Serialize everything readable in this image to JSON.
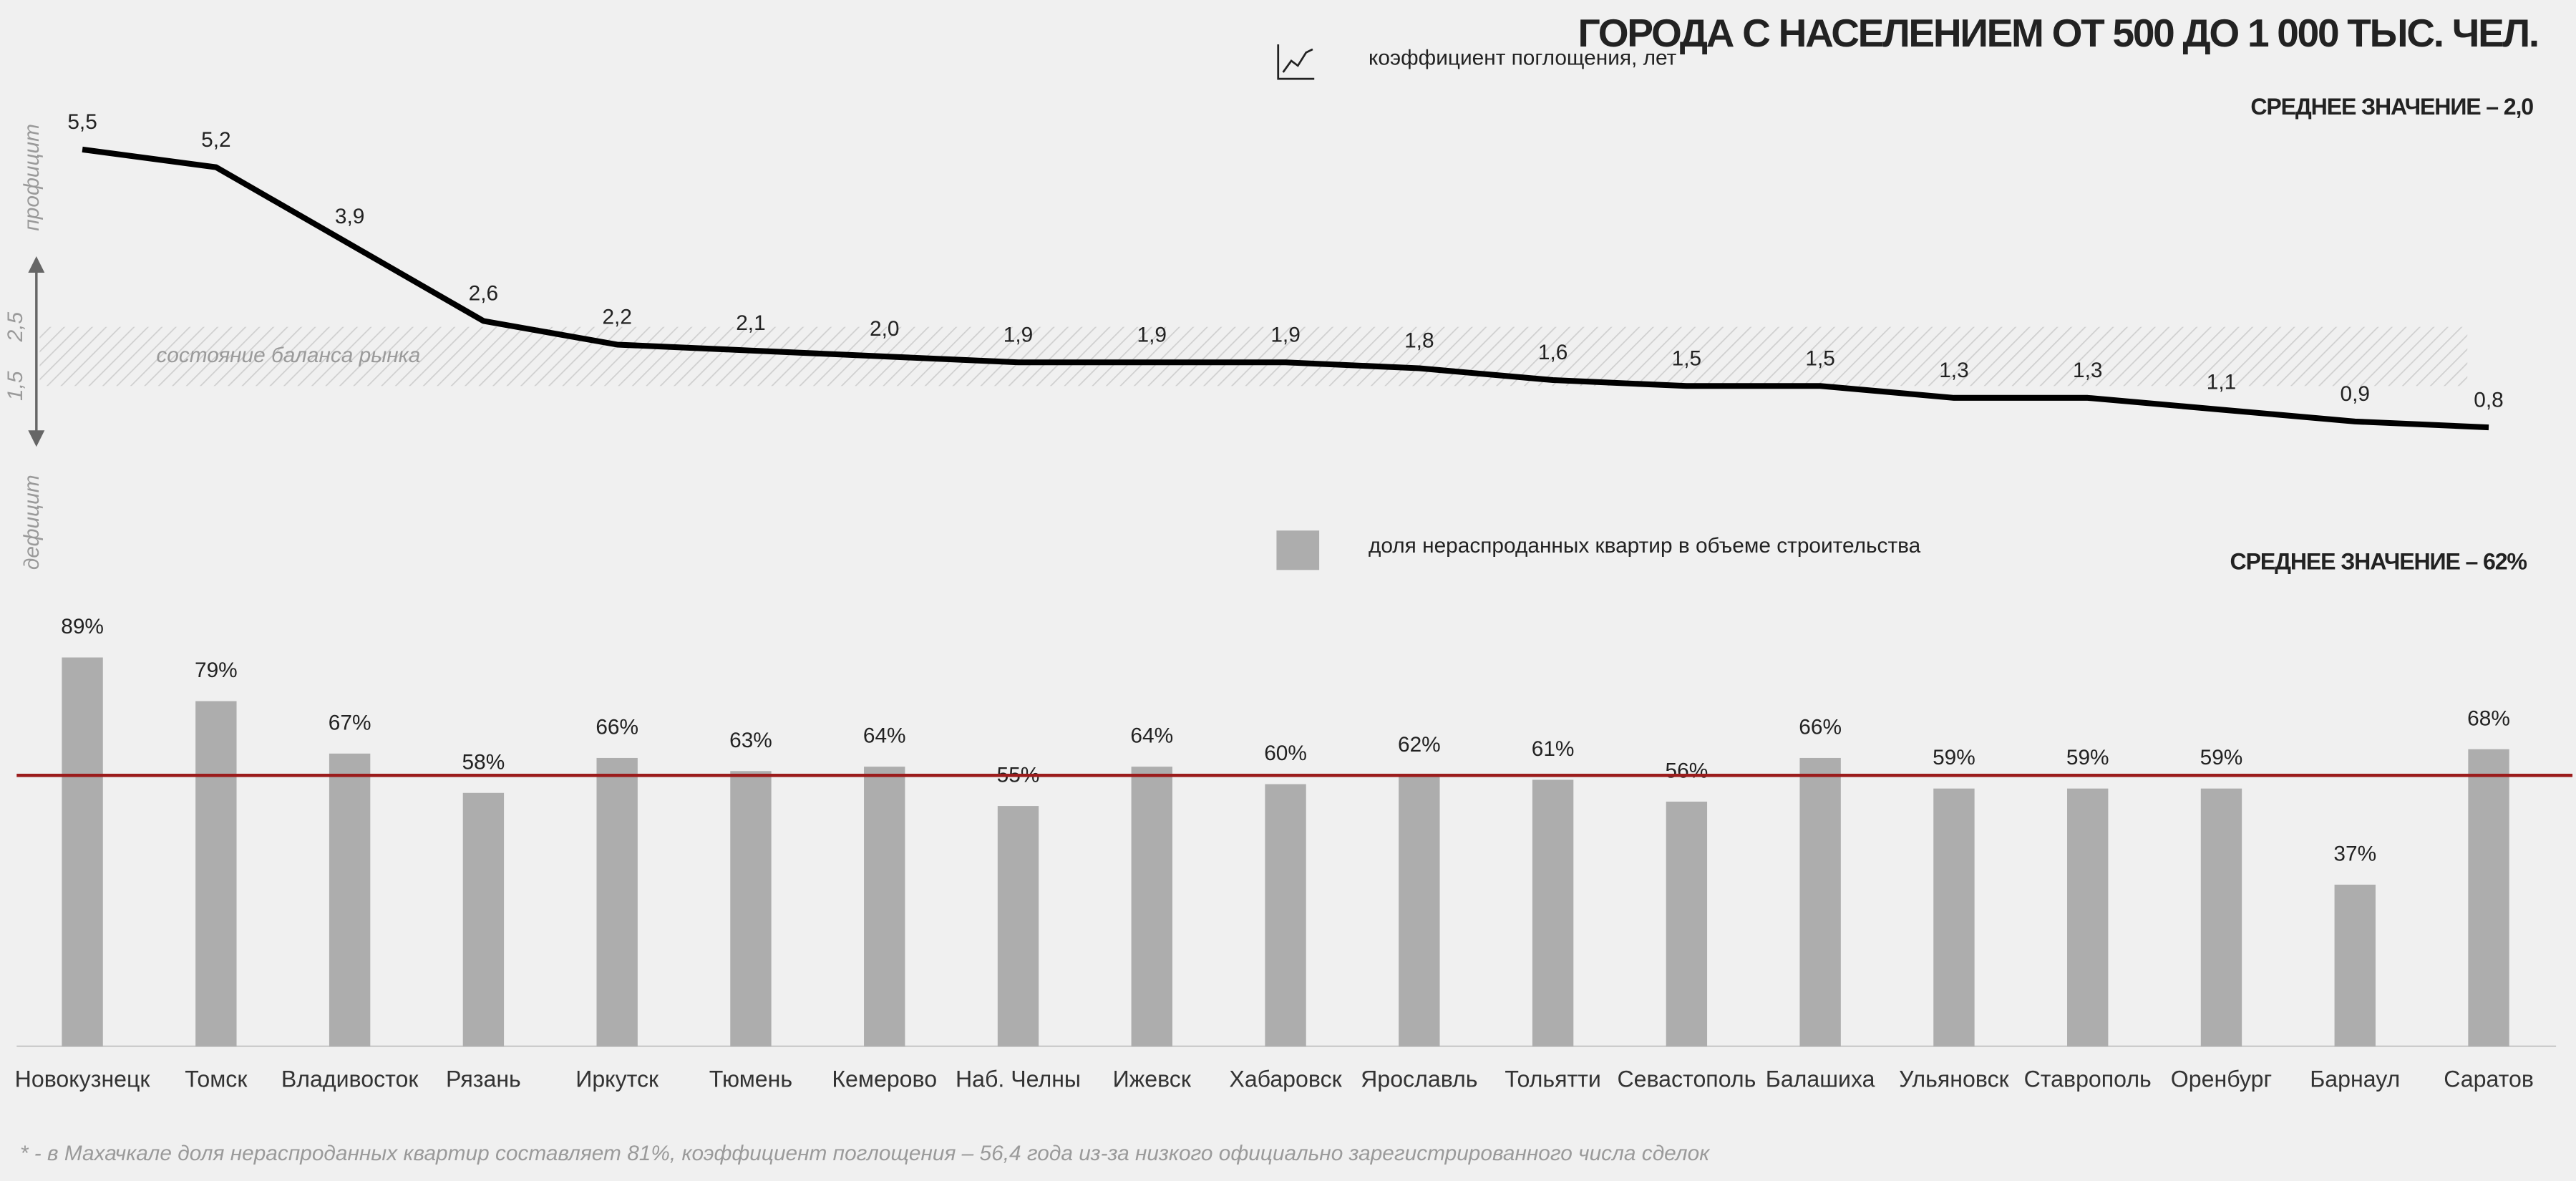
{
  "title": "ГОРОДА С НАСЕЛЕНИЕМ ОТ 500 ДО 1 000 ТЫС. ЧЕЛ.",
  "footnote": "* - в Махачкале доля нераспроданных квартир составляет 81%, коэффициент поглощения – 56,4 года из-за низкого официально зарегистрированного числа сделок",
  "chart_data": [
    {
      "type": "line",
      "legend_label": "коэффициент поглощения, лет",
      "average_label": "СРЕДНЕЕ ЗНАЧЕНИЕ – 2,0",
      "band_label": "состояние баланса рынка",
      "upper_label": "профицит",
      "lower_label": "дефицит",
      "color": "#000000",
      "values": [
        5.5,
        5.2,
        3.9,
        2.6,
        2.2,
        2.1,
        2.0,
        1.9,
        1.9,
        1.9,
        1.8,
        1.6,
        1.5,
        1.5,
        1.3,
        1.3,
        1.1,
        0.9,
        0.8
      ],
      "value_labels": [
        "5,5",
        "5,2",
        "3,9",
        "2,6",
        "2,2",
        "2,1",
        "2,0",
        "1,9",
        "1,9",
        "1,9",
        "1,8",
        "1,6",
        "1,5",
        "1,5",
        "1,3",
        "1,3",
        "1,1",
        "0,9",
        "0,8"
      ],
      "ylim": [
        0,
        7
      ],
      "yticks": [
        {
          "value": 2.5,
          "label": "2,5"
        },
        {
          "value": 1.5,
          "label": "1,5"
        }
      ]
    },
    {
      "type": "bar",
      "legend_label": "доля нераспроданных квартир в объеме строительства",
      "average_label": "СРЕДНЕЕ ЗНАЧЕНИЕ – 62%",
      "mean": 62,
      "color": "#adadad",
      "mean_color": "#9b1c1c",
      "categories": [
        "Новокузнецк",
        "Томск",
        "Владивосток",
        "Рязань",
        "Иркутск",
        "Тюмень",
        "Кемерово",
        "Наб. Челны",
        "Ижевск",
        "Хабаровск",
        "Ярославль",
        "Тольятти",
        "Севастополь",
        "Балашиха",
        "Ульяновск",
        "Ставрополь",
        "Оренбург",
        "Барнаул",
        "Саратов"
      ],
      "values": [
        89,
        79,
        67,
        58,
        66,
        63,
        64,
        55,
        64,
        60,
        62,
        61,
        56,
        66,
        59,
        59,
        59,
        37,
        68
      ],
      "value_labels": [
        "89%",
        "79%",
        "67%",
        "58%",
        "66%",
        "63%",
        "64%",
        "55%",
        "64%",
        "60%",
        "62%",
        "61%",
        "56%",
        "66%",
        "59%",
        "59%",
        "59%",
        "37%",
        "68%"
      ],
      "ylim": [
        0,
        100
      ]
    }
  ]
}
